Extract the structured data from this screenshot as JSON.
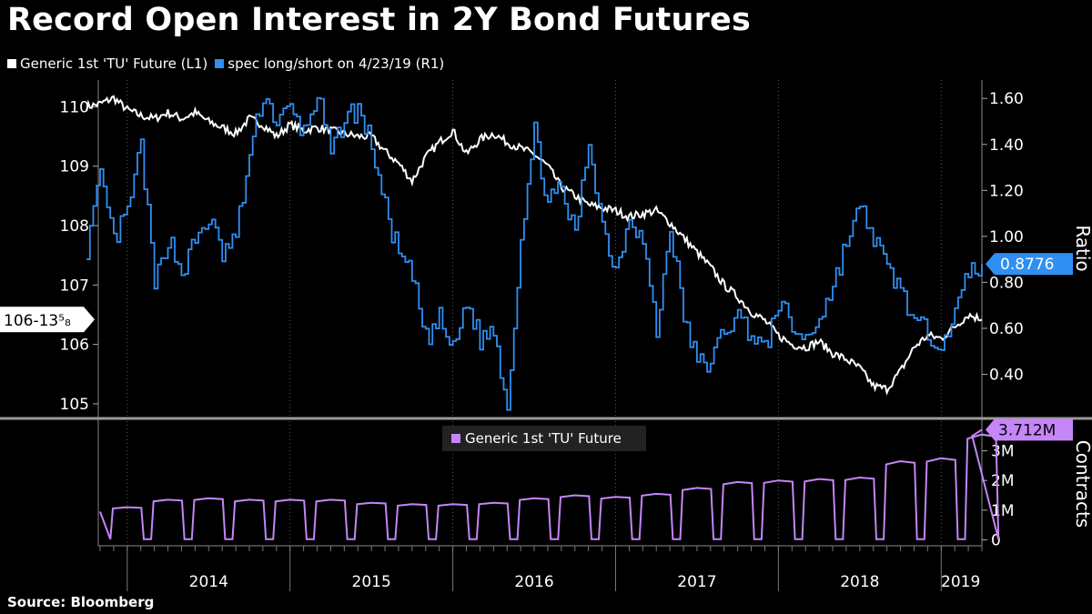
{
  "title": "Record Open Interest in 2Y Bond Futures",
  "source": "Source: Bloomberg",
  "legend": [
    {
      "label": "Generic 1st 'TU' Future  (L1)",
      "color": "#ffffff"
    },
    {
      "label": "spec long/short on 4/23/19 (R1)",
      "color": "#2f8ff2"
    }
  ],
  "lower_legend": {
    "label": "Generic 1st 'TU' Future",
    "color": "#c586f7"
  },
  "colors": {
    "price": "#ffffff",
    "ratio": "#2f8ff2",
    "oi": "#c586f7",
    "grid": "#5a5a5a",
    "background": "#000000"
  },
  "chart_data": [
    {
      "type": "line",
      "title": "",
      "x_axis": {
        "type": "date",
        "tick_labels": [
          "2014",
          "2015",
          "2016",
          "2017",
          "2018",
          "2019"
        ]
      },
      "left_axis": {
        "ylim": [
          104.8,
          110.45
        ],
        "ticks": [
          "105",
          "106",
          "107",
          "108",
          "109",
          "110"
        ]
      },
      "right_axis": {
        "label": "Ratio",
        "ylim": [
          0.22,
          1.68
        ],
        "ticks": [
          "0.40",
          "0.60",
          "0.80",
          "1.00",
          "1.20",
          "1.40",
          "1.60"
        ]
      },
      "last_value_labels": {
        "left": "106-13⁵₈",
        "right": "0.8776"
      },
      "series": [
        {
          "name": "Generic 1st 'TU' Future  (L1)",
          "axis": "left",
          "x": [
            "2013-10",
            "2013-11",
            "2013-12",
            "2014-01",
            "2014-02",
            "2014-03",
            "2014-04",
            "2014-05",
            "2014-06",
            "2014-07",
            "2014-08",
            "2014-09",
            "2014-10",
            "2014-11",
            "2014-12",
            "2015-01",
            "2015-02",
            "2015-03",
            "2015-04",
            "2015-05",
            "2015-06",
            "2015-07",
            "2015-08",
            "2015-09",
            "2015-10",
            "2015-11",
            "2015-12",
            "2016-01",
            "2016-02",
            "2016-03",
            "2016-04",
            "2016-05",
            "2016-06",
            "2016-07",
            "2016-08",
            "2016-09",
            "2016-10",
            "2016-11",
            "2016-12",
            "2017-01",
            "2017-02",
            "2017-03",
            "2017-04",
            "2017-05",
            "2017-06",
            "2017-07",
            "2017-08",
            "2017-09",
            "2017-10",
            "2017-11",
            "2017-12",
            "2018-01",
            "2018-02",
            "2018-03",
            "2018-04",
            "2018-05",
            "2018-06",
            "2018-07",
            "2018-08",
            "2018-09",
            "2018-10",
            "2018-11",
            "2018-12",
            "2019-01",
            "2019-02",
            "2019-03",
            "2019-04"
          ],
          "y": [
            110.0,
            110.05,
            110.15,
            109.95,
            109.85,
            109.8,
            109.9,
            109.8,
            109.9,
            109.75,
            109.65,
            109.55,
            109.8,
            109.7,
            109.5,
            109.7,
            109.6,
            109.65,
            109.6,
            109.55,
            109.5,
            109.5,
            109.25,
            109.05,
            108.75,
            109.15,
            109.4,
            109.6,
            109.2,
            109.45,
            109.55,
            109.4,
            109.3,
            109.2,
            109.0,
            108.65,
            108.5,
            108.35,
            108.3,
            108.25,
            108.15,
            108.2,
            108.25,
            108.05,
            107.8,
            107.55,
            107.3,
            107.0,
            106.8,
            106.55,
            106.4,
            106.15,
            106.0,
            105.95,
            106.05,
            105.85,
            105.75,
            105.6,
            105.3,
            105.25,
            105.55,
            105.95,
            106.15,
            106.1,
            106.3,
            106.5,
            106.42
          ]
        },
        {
          "name": "spec long/short on 4/23/19 (R1)",
          "axis": "right",
          "x": [
            "2013-10",
            "2013-11",
            "2013-12",
            "2014-01",
            "2014-02",
            "2014-03",
            "2014-04",
            "2014-05",
            "2014-06",
            "2014-07",
            "2014-08",
            "2014-09",
            "2014-10",
            "2014-11",
            "2014-12",
            "2015-01",
            "2015-02",
            "2015-03",
            "2015-04",
            "2015-05",
            "2015-06",
            "2015-07",
            "2015-08",
            "2015-09",
            "2015-10",
            "2015-11",
            "2015-12",
            "2016-01",
            "2016-02",
            "2016-03",
            "2016-04",
            "2016-05",
            "2016-06",
            "2016-07",
            "2016-08",
            "2016-09",
            "2016-10",
            "2016-11",
            "2016-12",
            "2017-01",
            "2017-02",
            "2017-03",
            "2017-04",
            "2017-05",
            "2017-06",
            "2017-07",
            "2017-08",
            "2017-09",
            "2017-10",
            "2017-11",
            "2017-12",
            "2018-01",
            "2018-02",
            "2018-03",
            "2018-04",
            "2018-05",
            "2018-06",
            "2018-07",
            "2018-08",
            "2018-09",
            "2018-10",
            "2018-11",
            "2018-12",
            "2019-01",
            "2019-02",
            "2019-03",
            "2019-04"
          ],
          "y": [
            0.95,
            1.25,
            0.98,
            1.1,
            1.4,
            0.78,
            1.0,
            0.84,
            0.98,
            1.08,
            0.92,
            1.0,
            1.35,
            1.62,
            1.5,
            1.55,
            1.45,
            1.62,
            1.35,
            1.52,
            1.55,
            1.4,
            1.12,
            0.92,
            0.82,
            0.55,
            0.64,
            0.5,
            0.72,
            0.55,
            0.6,
            0.26,
            1.0,
            1.45,
            1.15,
            1.2,
            1.0,
            1.42,
            1.05,
            0.85,
            1.1,
            0.98,
            0.58,
            1.05,
            0.65,
            0.45,
            0.45,
            0.6,
            0.65,
            0.58,
            0.5,
            0.72,
            0.6,
            0.55,
            0.65,
            0.78,
            0.98,
            1.12,
            1.0,
            0.85,
            0.78,
            0.62,
            0.58,
            0.55,
            0.65,
            0.85,
            0.88
          ]
        }
      ]
    },
    {
      "type": "area",
      "title": "",
      "legend": [
        "Generic 1st 'TU' Future"
      ],
      "right_axis": {
        "label": "Contracts",
        "ylim": [
          -0.2,
          4.0
        ],
        "ticks": [
          "0",
          "1M",
          "2M",
          "3M"
        ]
      },
      "last_value_label": "3.712M",
      "series": [
        {
          "name": "Generic 1st 'TU' Future",
          "quarterly_peaks_millions": [
            1.1,
            1.35,
            1.4,
            1.35,
            1.35,
            1.35,
            1.25,
            1.2,
            1.2,
            1.25,
            1.4,
            1.5,
            1.45,
            1.55,
            1.75,
            1.95,
            2.0,
            2.05,
            2.1,
            2.65,
            2.75,
            3.55
          ],
          "troughs_millions": 0.02,
          "last_millions": 3.712
        }
      ]
    }
  ]
}
